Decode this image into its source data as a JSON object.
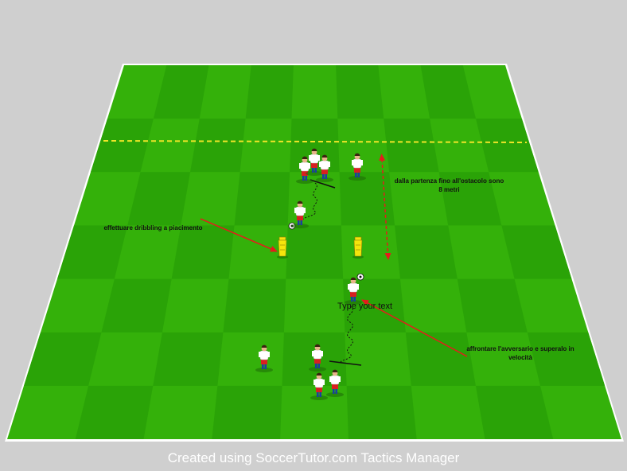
{
  "annotations": {
    "distance_line1": "dalla partenza  fino all'ostacolo sono",
    "distance_line2": "8 metri",
    "dribbling": "effettuare dribbling a piacimento",
    "attack_line1": "affrontare l'avversario e superalo in",
    "attack_line2": "velocità",
    "placeholder_text": "Type your text"
  },
  "footer": "Created using SoccerTutor.com Tactics Manager",
  "colors": {
    "pitch_light": "#34b10a",
    "pitch_dark": "#2aa307",
    "player_shirt": "#ffffff",
    "player_shorts": "#d82020",
    "player_socks": "#1a3fa0",
    "mannequin": "#f5e50c",
    "arrow": "#e51c1c",
    "dashed_line": "#f0e628"
  },
  "icons": [
    "player-icon",
    "ball-icon",
    "mannequin-icon",
    "arrow-icon"
  ]
}
